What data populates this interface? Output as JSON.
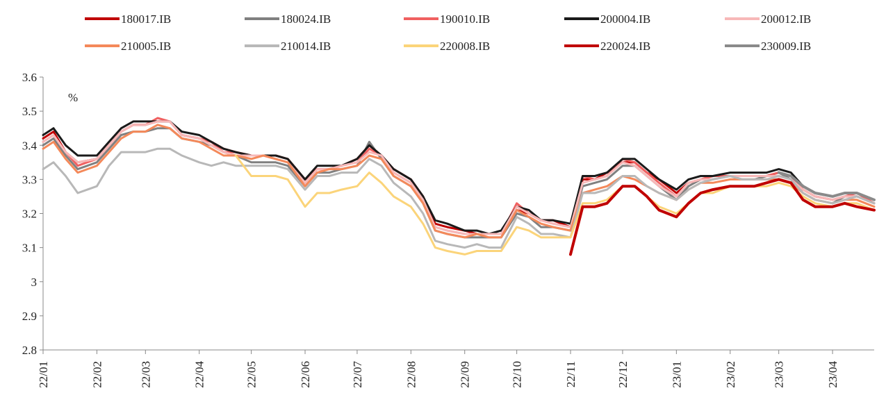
{
  "chart_data": {
    "type": "line",
    "title": "",
    "xlabel": "",
    "ylabel": "",
    "unit_label": "%",
    "ylim": [
      2.8,
      3.6
    ],
    "y_ticks": [
      "2.8",
      "2.9",
      "3",
      "3.1",
      "3.2",
      "3.3",
      "3.4",
      "3.5",
      "3.6"
    ],
    "x_range": [
      "2022-01-04",
      "2023-04-28"
    ],
    "x_ticks": [
      {
        "date": "2022-01-04",
        "label": "22/01"
      },
      {
        "date": "2022-02-04",
        "label": "22/02"
      },
      {
        "date": "2022-03-04",
        "label": "22/03"
      },
      {
        "date": "2022-04-04",
        "label": "22/04"
      },
      {
        "date": "2022-05-04",
        "label": "22/05"
      },
      {
        "date": "2022-06-04",
        "label": "22/06"
      },
      {
        "date": "2022-07-04",
        "label": "22/07"
      },
      {
        "date": "2022-08-04",
        "label": "22/08"
      },
      {
        "date": "2022-09-04",
        "label": "22/09"
      },
      {
        "date": "2022-10-04",
        "label": "22/10"
      },
      {
        "date": "2022-11-04",
        "label": "22/11"
      },
      {
        "date": "2022-12-04",
        "label": "22/12"
      },
      {
        "date": "2023-01-04",
        "label": "23/01"
      },
      {
        "date": "2023-02-04",
        "label": "23/02"
      },
      {
        "date": "2023-03-04",
        "label": "23/03"
      },
      {
        "date": "2023-04-04",
        "label": "23/04"
      }
    ],
    "legend_position": "top",
    "grid": false,
    "x": [
      "2022-01-04",
      "2022-01-10",
      "2022-01-17",
      "2022-01-24",
      "2022-02-04",
      "2022-02-11",
      "2022-02-18",
      "2022-02-25",
      "2022-03-04",
      "2022-03-11",
      "2022-03-18",
      "2022-03-25",
      "2022-04-04",
      "2022-04-11",
      "2022-04-18",
      "2022-04-25",
      "2022-05-04",
      "2022-05-11",
      "2022-05-18",
      "2022-05-25",
      "2022-06-04",
      "2022-06-11",
      "2022-06-18",
      "2022-06-25",
      "2022-07-04",
      "2022-07-11",
      "2022-07-18",
      "2022-07-25",
      "2022-08-04",
      "2022-08-11",
      "2022-08-18",
      "2022-08-25",
      "2022-09-04",
      "2022-09-11",
      "2022-09-18",
      "2022-09-25",
      "2022-10-04",
      "2022-10-11",
      "2022-10-18",
      "2022-10-25",
      "2022-11-04",
      "2022-11-11",
      "2022-11-18",
      "2022-11-25",
      "2022-12-04",
      "2022-12-11",
      "2022-12-18",
      "2022-12-25",
      "2023-01-04",
      "2023-01-11",
      "2023-01-18",
      "2023-01-25",
      "2023-02-04",
      "2023-02-11",
      "2023-02-18",
      "2023-02-25",
      "2023-03-04",
      "2023-03-11",
      "2023-03-18",
      "2023-03-25",
      "2023-04-04",
      "2023-04-11",
      "2023-04-18",
      "2023-04-28"
    ],
    "series": [
      {
        "name": "180017.IB",
        "color": "#c00000",
        "width": 3,
        "values": [
          3.42,
          3.44,
          3.38,
          3.35,
          3.36,
          3.4,
          3.44,
          3.46,
          3.46,
          3.47,
          3.47,
          3.43,
          3.42,
          3.41,
          3.39,
          3.38,
          3.37,
          3.37,
          3.37,
          3.36,
          3.3,
          3.33,
          3.33,
          3.34,
          3.36,
          3.4,
          3.37,
          3.33,
          3.3,
          3.25,
          3.17,
          3.16,
          3.15,
          3.14,
          3.14,
          3.14,
          3.21,
          3.2,
          3.18,
          3.18,
          3.16,
          3.3,
          3.3,
          3.32,
          3.35,
          3.35,
          3.32,
          3.3,
          3.26,
          3.29,
          3.3,
          3.31,
          3.31,
          3.31,
          3.31,
          3.31,
          3.32,
          3.31,
          3.27,
          3.25,
          3.24,
          3.25,
          3.25,
          3.23
        ]
      },
      {
        "name": "180024.IB",
        "color": "#808080",
        "width": 3,
        "values": [
          3.4,
          3.42,
          3.37,
          3.33,
          3.35,
          3.39,
          3.43,
          3.44,
          3.44,
          3.45,
          3.45,
          3.42,
          3.41,
          3.4,
          3.38,
          3.37,
          3.35,
          3.35,
          3.35,
          3.34,
          3.28,
          3.32,
          3.32,
          3.33,
          3.34,
          3.41,
          3.36,
          3.31,
          3.28,
          3.23,
          3.15,
          3.14,
          3.13,
          3.13,
          3.13,
          3.13,
          3.2,
          3.19,
          3.16,
          3.16,
          3.15,
          3.28,
          3.29,
          3.3,
          3.34,
          3.34,
          3.31,
          3.28,
          3.24,
          3.28,
          3.3,
          3.3,
          3.31,
          3.3,
          3.3,
          3.31,
          3.32,
          3.3,
          3.26,
          3.24,
          3.23,
          3.25,
          3.25,
          3.23
        ]
      },
      {
        "name": "190010.IB",
        "color": "#f06060",
        "width": 3,
        "values": [
          3.41,
          3.43,
          3.38,
          3.34,
          3.36,
          3.4,
          3.44,
          3.46,
          3.46,
          3.48,
          3.47,
          3.43,
          3.42,
          3.41,
          3.38,
          3.38,
          3.37,
          3.37,
          3.36,
          3.35,
          3.29,
          3.33,
          3.33,
          3.34,
          3.35,
          3.39,
          3.37,
          3.32,
          3.29,
          3.24,
          3.16,
          3.15,
          3.14,
          3.14,
          3.14,
          3.14,
          3.23,
          3.2,
          3.18,
          3.17,
          3.16,
          3.31,
          3.3,
          3.31,
          3.36,
          3.35,
          3.32,
          3.29,
          3.25,
          3.29,
          3.3,
          3.31,
          3.31,
          3.31,
          3.31,
          3.31,
          3.32,
          3.31,
          3.27,
          3.25,
          3.24,
          3.25,
          3.26,
          3.23
        ]
      },
      {
        "name": "200004.IB",
        "color": "#1a1a1a",
        "width": 3,
        "values": [
          3.43,
          3.45,
          3.4,
          3.37,
          3.37,
          3.41,
          3.45,
          3.47,
          3.47,
          3.47,
          3.47,
          3.44,
          3.43,
          3.41,
          3.39,
          3.38,
          3.37,
          3.37,
          3.37,
          3.36,
          3.3,
          3.34,
          3.34,
          3.34,
          3.36,
          3.4,
          3.37,
          3.33,
          3.3,
          3.25,
          3.18,
          3.17,
          3.15,
          3.15,
          3.14,
          3.15,
          3.22,
          3.21,
          3.18,
          3.18,
          3.17,
          3.31,
          3.31,
          3.32,
          3.36,
          3.36,
          3.33,
          3.3,
          3.27,
          3.3,
          3.31,
          3.31,
          3.32,
          3.32,
          3.32,
          3.32,
          3.33,
          3.32,
          3.28,
          3.26,
          3.25,
          3.26,
          3.26,
          3.24
        ]
      },
      {
        "name": "200012.IB",
        "color": "#f7b8b8",
        "width": 3,
        "values": [
          3.41,
          3.43,
          3.38,
          3.35,
          3.36,
          3.4,
          3.44,
          3.46,
          3.46,
          3.47,
          3.47,
          3.43,
          3.42,
          3.4,
          3.38,
          3.37,
          3.37,
          3.37,
          3.36,
          3.35,
          3.29,
          3.33,
          3.33,
          3.34,
          3.35,
          3.38,
          3.37,
          3.32,
          3.29,
          3.24,
          3.16,
          3.15,
          3.14,
          3.14,
          3.14,
          3.14,
          3.22,
          3.2,
          3.18,
          3.17,
          3.16,
          3.29,
          3.3,
          3.31,
          3.35,
          3.34,
          3.31,
          3.28,
          3.25,
          3.29,
          3.3,
          3.3,
          3.31,
          3.31,
          3.31,
          3.31,
          3.31,
          3.3,
          3.27,
          3.25,
          3.24,
          3.25,
          3.25,
          3.23
        ]
      },
      {
        "name": "210005.IB",
        "color": "#f4895a",
        "width": 3,
        "values": [
          3.39,
          3.41,
          3.36,
          3.32,
          3.34,
          3.38,
          3.42,
          3.44,
          3.44,
          3.46,
          3.45,
          3.42,
          3.41,
          3.39,
          3.37,
          3.37,
          3.36,
          3.37,
          3.36,
          3.35,
          3.28,
          3.32,
          3.33,
          3.33,
          3.34,
          3.37,
          3.36,
          3.31,
          3.28,
          3.23,
          3.15,
          3.14,
          3.13,
          3.14,
          3.13,
          3.13,
          3.21,
          3.19,
          3.17,
          3.16,
          3.15,
          3.26,
          3.27,
          3.28,
          3.31,
          3.3,
          3.28,
          3.26,
          3.24,
          3.27,
          3.29,
          3.29,
          3.3,
          3.3,
          3.3,
          3.3,
          3.3,
          3.29,
          3.26,
          3.24,
          3.23,
          3.24,
          3.24,
          3.22
        ]
      },
      {
        "name": "210014.IB",
        "color": "#b8b8b8",
        "width": 3,
        "values": [
          3.33,
          3.35,
          3.31,
          3.26,
          3.28,
          3.34,
          3.38,
          3.38,
          3.38,
          3.39,
          3.39,
          3.37,
          3.35,
          3.34,
          3.35,
          3.34,
          3.34,
          3.34,
          3.34,
          3.33,
          3.27,
          3.31,
          3.31,
          3.32,
          3.32,
          3.36,
          3.34,
          3.29,
          3.25,
          3.2,
          3.12,
          3.11,
          3.1,
          3.11,
          3.1,
          3.1,
          3.19,
          3.17,
          3.14,
          3.14,
          3.13,
          3.26,
          3.26,
          3.27,
          3.31,
          3.31,
          3.28,
          3.26,
          3.24,
          3.27,
          3.29,
          3.3,
          3.31,
          3.3,
          3.3,
          3.3,
          3.31,
          3.3,
          3.26,
          3.24,
          3.23,
          3.24,
          3.25,
          3.23
        ]
      },
      {
        "name": "220008.IB",
        "color": "#fbd47a",
        "width": 3,
        "values": [
          null,
          null,
          null,
          null,
          null,
          null,
          null,
          null,
          null,
          null,
          null,
          null,
          null,
          null,
          null,
          3.37,
          3.31,
          3.31,
          3.31,
          3.3,
          3.22,
          3.26,
          3.26,
          3.27,
          3.28,
          3.32,
          3.29,
          3.25,
          3.22,
          3.17,
          3.1,
          3.09,
          3.08,
          3.09,
          3.09,
          3.09,
          3.16,
          3.15,
          3.13,
          3.13,
          3.13,
          3.23,
          3.23,
          3.24,
          3.28,
          3.28,
          3.25,
          3.22,
          3.2,
          3.23,
          3.26,
          3.26,
          3.28,
          3.28,
          3.28,
          3.28,
          3.29,
          3.28,
          3.25,
          3.23,
          3.22,
          3.23,
          3.23,
          3.21
        ]
      },
      {
        "name": "220024.IB",
        "color": "#c00000",
        "width": 4,
        "values": [
          null,
          null,
          null,
          null,
          null,
          null,
          null,
          null,
          null,
          null,
          null,
          null,
          null,
          null,
          null,
          null,
          null,
          null,
          null,
          null,
          null,
          null,
          null,
          null,
          null,
          null,
          null,
          null,
          null,
          null,
          null,
          null,
          null,
          null,
          null,
          null,
          null,
          null,
          null,
          null,
          3.08,
          3.22,
          3.22,
          3.23,
          3.28,
          3.28,
          3.25,
          3.21,
          3.19,
          3.23,
          3.26,
          3.27,
          3.28,
          3.28,
          3.28,
          3.29,
          3.3,
          3.29,
          3.24,
          3.22,
          3.22,
          3.23,
          3.22,
          3.21
        ]
      },
      {
        "name": "230009.IB",
        "color": "#8a8a8a",
        "width": 4,
        "values": [
          null,
          null,
          null,
          null,
          null,
          null,
          null,
          null,
          null,
          null,
          null,
          null,
          null,
          null,
          null,
          null,
          null,
          null,
          null,
          null,
          null,
          null,
          null,
          null,
          null,
          null,
          null,
          null,
          null,
          null,
          null,
          null,
          null,
          null,
          null,
          null,
          null,
          null,
          null,
          null,
          null,
          null,
          null,
          null,
          null,
          null,
          null,
          null,
          null,
          null,
          null,
          null,
          null,
          null,
          null,
          null,
          3.32,
          3.31,
          3.28,
          3.26,
          3.25,
          3.26,
          3.26,
          3.24
        ]
      }
    ]
  }
}
